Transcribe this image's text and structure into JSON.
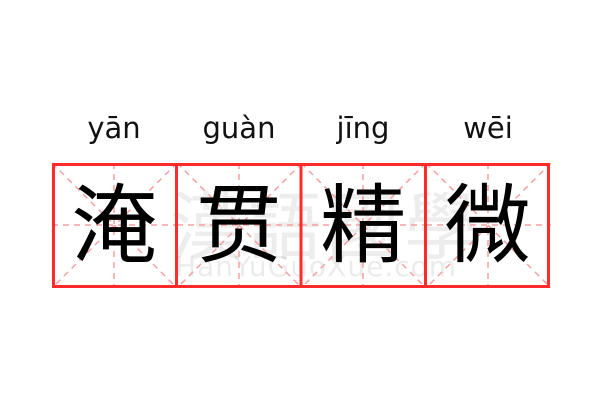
{
  "pinyin": [
    "yān",
    "guàn",
    "jīng",
    "wēi"
  ],
  "characters": [
    "淹",
    "贯",
    "精",
    "微"
  ],
  "watermark": {
    "logo_text": "漢語國學",
    "site": "HanYuGuoXue.com"
  },
  "colors": {
    "border": "#ff2a2a",
    "guide": "#f5a0a0",
    "text": "#000000"
  }
}
